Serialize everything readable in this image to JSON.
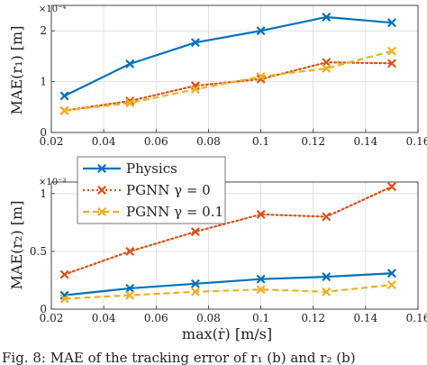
{
  "chart_data": [
    {
      "type": "line",
      "ylabel": "MAE(r₁)  [m]",
      "y_exponent": "×10⁻⁴",
      "x": [
        0.025,
        0.05,
        0.075,
        0.1,
        0.125,
        0.15
      ],
      "xlim": [
        0.02,
        0.16
      ],
      "ylim": [
        0,
        2.5
      ],
      "x_ticks": [
        "0.02",
        "0.04",
        "0.06",
        "0.08",
        "0.1",
        "0.12",
        "0.14",
        "0.16"
      ],
      "y_ticks": [
        "0",
        "1",
        "2"
      ],
      "grid": true,
      "series": [
        {
          "name": "Physics",
          "color": "#0072BD",
          "marker": "x",
          "dash": "solid",
          "values": [
            0.72,
            1.35,
            1.77,
            2.0,
            2.27,
            2.16
          ]
        },
        {
          "name": "PGNN γ = 0",
          "color": "#D95319",
          "marker": "x",
          "dash": "dotted",
          "values": [
            0.43,
            0.62,
            0.92,
            1.05,
            1.38,
            1.36
          ]
        },
        {
          "name": "PGNN γ = 0.1",
          "color": "#EDB120",
          "marker": "x",
          "dash": "dashed",
          "values": [
            0.43,
            0.58,
            0.85,
            1.1,
            1.26,
            1.6
          ]
        }
      ]
    },
    {
      "type": "line",
      "ylabel": "MAE(r₂)  [m]",
      "xlabel": "max(ṙ)  [m/s]",
      "y_exponent": "×10⁻³",
      "x": [
        0.025,
        0.05,
        0.075,
        0.1,
        0.125,
        0.15
      ],
      "xlim": [
        0.02,
        0.16
      ],
      "ylim": [
        0,
        1.1
      ],
      "x_ticks": [
        "0.02",
        "0.04",
        "0.06",
        "0.08",
        "0.1",
        "0.12",
        "0.14",
        "0.16"
      ],
      "y_ticks": [
        "0",
        "0.5",
        "1"
      ],
      "grid": true,
      "legend": "top-left",
      "series": [
        {
          "name": "Physics",
          "color": "#0072BD",
          "marker": "x",
          "dash": "solid",
          "values": [
            0.12,
            0.18,
            0.22,
            0.26,
            0.28,
            0.31
          ]
        },
        {
          "name": "PGNN γ = 0",
          "color": "#D95319",
          "marker": "x",
          "dash": "dotted",
          "values": [
            0.3,
            0.5,
            0.67,
            0.82,
            0.8,
            1.06
          ]
        },
        {
          "name": "PGNN γ = 0.1",
          "color": "#EDB120",
          "marker": "x",
          "dash": "dashed",
          "values": [
            0.09,
            0.12,
            0.15,
            0.17,
            0.15,
            0.21
          ]
        }
      ]
    }
  ],
  "caption": "Fig. 8: MAE of the tracking error of r₁ (b) and r₂ (b)"
}
